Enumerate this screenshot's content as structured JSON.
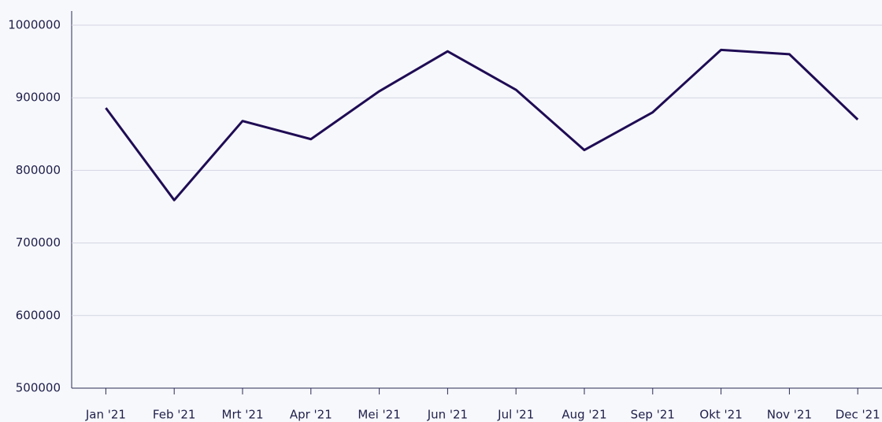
{
  "chart_data": {
    "type": "line",
    "categories": [
      "Jan '21",
      "Feb '21",
      "Mrt '21",
      "Apr '21",
      "Mei '21",
      "Jun '21",
      "Jul '21",
      "Aug '21",
      "Sep '21",
      "Okt '21",
      "Nov '21",
      "Dec '21"
    ],
    "values": [
      886000,
      759000,
      868000,
      843000,
      909000,
      964000,
      911000,
      828000,
      880000,
      966000,
      960000,
      870000
    ],
    "color": "#1f0c54",
    "ylim": [
      500000,
      1000000
    ],
    "yticks": [
      500000,
      600000,
      700000,
      800000,
      900000,
      1000000
    ],
    "grid": true
  }
}
